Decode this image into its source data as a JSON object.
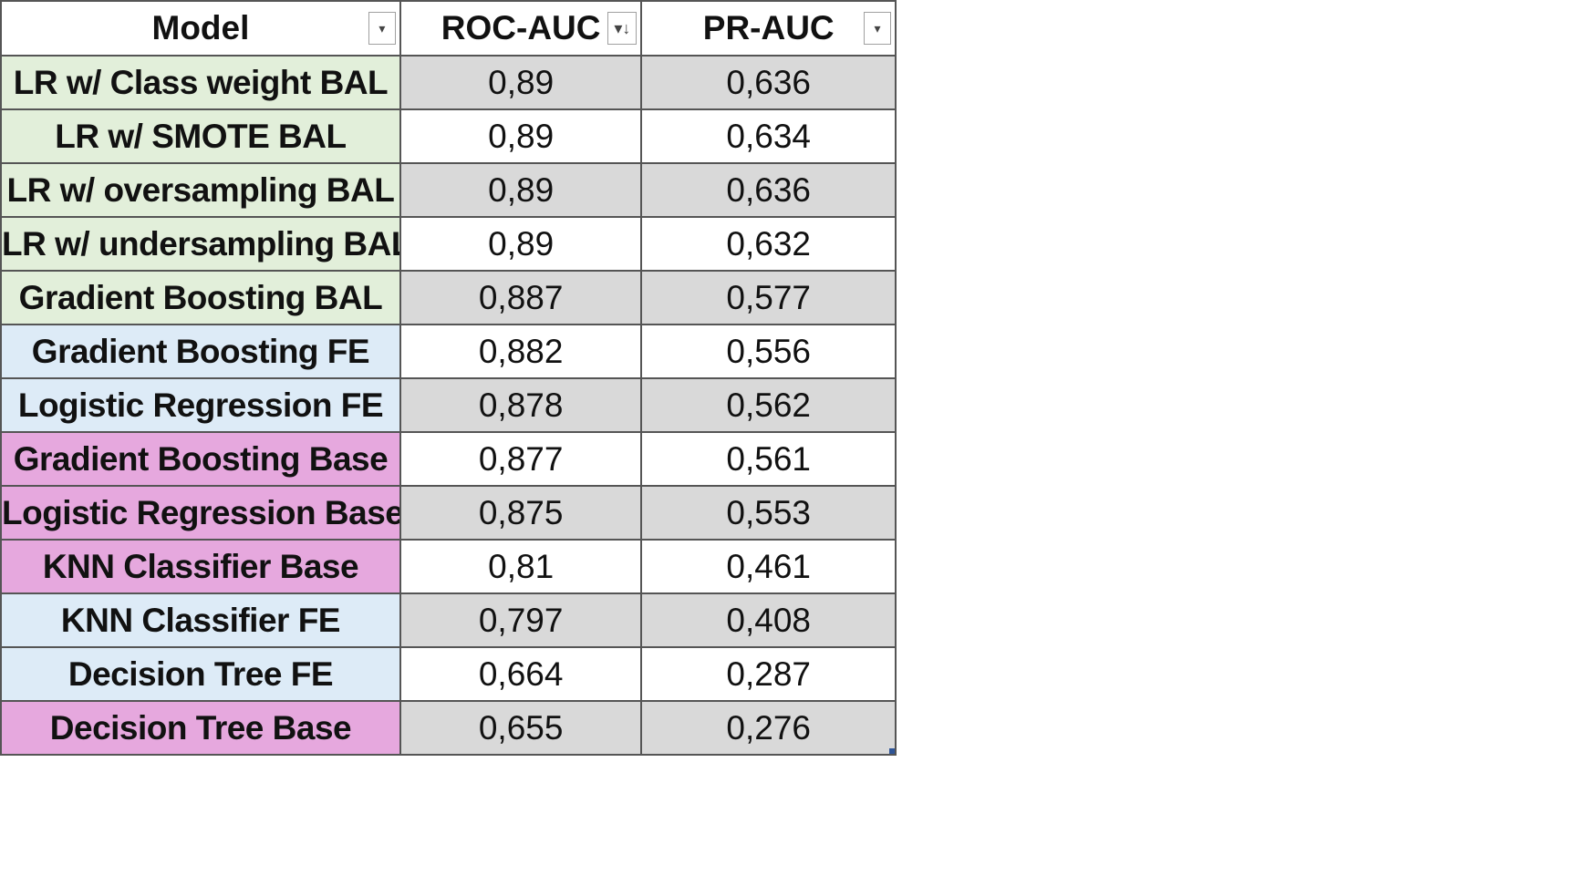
{
  "colors": {
    "bal": "#e2efda",
    "fe": "#ddebf7",
    "base": "#e6a8de",
    "shaded": "#d9d9d9",
    "plain": "#ffffff",
    "border": "#555555"
  },
  "header": {
    "model": "Model",
    "roc_auc": "ROC-AUC",
    "pr_auc": "PR-AUC"
  },
  "filter_icons": {
    "model": "dropdown-arrow-icon",
    "roc_auc": "sort-descending-icon",
    "pr_auc": "dropdown-arrow-icon"
  },
  "rows": [
    {
      "model": "LR w/ Class weight BAL",
      "roc": "0,89",
      "pr": "0,636",
      "group": "bal"
    },
    {
      "model": "LR w/ SMOTE BAL",
      "roc": "0,89",
      "pr": "0,634",
      "group": "bal"
    },
    {
      "model": "LR w/ oversampling BAL",
      "roc": "0,89",
      "pr": "0,636",
      "group": "bal"
    },
    {
      "model": "LR w/ undersampling BAL",
      "roc": "0,89",
      "pr": "0,632",
      "group": "bal"
    },
    {
      "model": "Gradient Boosting BAL",
      "roc": "0,887",
      "pr": "0,577",
      "group": "bal"
    },
    {
      "model": "Gradient Boosting FE",
      "roc": "0,882",
      "pr": "0,556",
      "group": "fe"
    },
    {
      "model": "Logistic Regression FE",
      "roc": "0,878",
      "pr": "0,562",
      "group": "fe"
    },
    {
      "model": "Gradient Boosting Base",
      "roc": "0,877",
      "pr": "0,561",
      "group": "base"
    },
    {
      "model": "Logistic Regression Base",
      "roc": "0,875",
      "pr": "0,553",
      "group": "base"
    },
    {
      "model": "KNN Classifier Base",
      "roc": "0,81",
      "pr": "0,461",
      "group": "base"
    },
    {
      "model": "KNN Classifier FE",
      "roc": "0,797",
      "pr": "0,408",
      "group": "fe"
    },
    {
      "model": "Decision Tree FE",
      "roc": "0,664",
      "pr": "0,287",
      "group": "fe"
    },
    {
      "model": "Decision Tree Base",
      "roc": "0,655",
      "pr": "0,276",
      "group": "base"
    }
  ]
}
